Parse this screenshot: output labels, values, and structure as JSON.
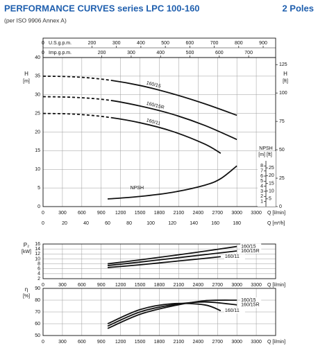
{
  "chart_data": [
    {
      "type": "line",
      "title": "PERFORMANCE CURVES series LPC 100-160",
      "annotation": "2 Poles",
      "subtitle": "(per ISO 9906 Annex A)",
      "y_label": "H",
      "y_unit": "[m]",
      "y2_label": "H",
      "y2_unit": "[ft]",
      "x_label": "Q [l/min]",
      "x2_label": "Q [m³/h]",
      "x3_label": "U.S.g.p.m.",
      "x4_label": "Imp.g.p.m.",
      "y3_label": "NPSH",
      "y3_unit": "[m]",
      "y4_unit": "[ft]",
      "xlim": [
        0,
        3600
      ],
      "xticks": [
        0,
        300,
        600,
        900,
        1200,
        1500,
        1800,
        2100,
        2400,
        2700,
        3000,
        3300
      ],
      "x2lim": [
        0,
        216
      ],
      "x2ticks": [
        0,
        20,
        40,
        60,
        80,
        100,
        120,
        140,
        160,
        180
      ],
      "x3lim": [
        0,
        951.02
      ],
      "x3ticks": [
        0,
        200,
        300,
        400,
        500,
        600,
        700,
        800,
        900
      ],
      "x4lim": [
        0,
        791.89
      ],
      "x4ticks": [
        0,
        200,
        300,
        400,
        500,
        600,
        700
      ],
      "ylim": [
        0,
        40
      ],
      "yticks": [
        0,
        5,
        10,
        15,
        20,
        25,
        30,
        35,
        40
      ],
      "y2lim": [
        0,
        131.23
      ],
      "y2ticks": [
        0,
        25,
        50,
        75,
        100,
        125
      ],
      "y3lim": [
        0,
        9
      ],
      "y3ticks": [
        1,
        2,
        3,
        4,
        5,
        6,
        7,
        8
      ],
      "y4lim": [
        0,
        29.53
      ],
      "y4ticks": [
        5,
        10,
        15,
        20,
        25
      ],
      "grid": true,
      "series": [
        {
          "name": "160/15",
          "color": "#111111",
          "x": [
            0,
            500,
            1000,
            1500,
            2000,
            2500,
            3000
          ],
          "values": [
            35,
            34.8,
            34,
            32.5,
            30.3,
            27.6,
            24.5
          ]
        },
        {
          "name": "160/15R",
          "color": "#111111",
          "x": [
            0,
            500,
            1000,
            1500,
            2000,
            2500,
            3000
          ],
          "values": [
            29.5,
            29.3,
            28.6,
            27,
            24.8,
            21.8,
            18
          ]
        },
        {
          "name": "160/11",
          "color": "#111111",
          "x": [
            0,
            500,
            1000,
            1500,
            2000,
            2500,
            2750
          ],
          "values": [
            25,
            24.8,
            24,
            22.5,
            20.2,
            16.8,
            14.3
          ]
        },
        {
          "name": "NPSH",
          "color": "#111111",
          "axis": "y3",
          "x": [
            1000,
            1500,
            2000,
            2500,
            2750,
            3000
          ],
          "values": [
            1.5,
            2,
            2.8,
            4.2,
            5.5,
            8
          ]
        }
      ]
    },
    {
      "type": "line",
      "y_label": "P₂",
      "y_unit": "[kW]",
      "x_label": "Q [l/min]",
      "xlim": [
        0,
        3600
      ],
      "xticks": [
        0,
        300,
        600,
        900,
        1200,
        1500,
        1800,
        2100,
        2400,
        2700,
        3000,
        3300
      ],
      "ylim": [
        2,
        16
      ],
      "yticks": [
        2,
        4,
        6,
        8,
        10,
        12,
        14,
        16
      ],
      "grid": true,
      "series": [
        {
          "name": "160/15",
          "color": "#111111",
          "x": [
            1000,
            1500,
            2000,
            2500,
            3000
          ],
          "values": [
            8,
            9.6,
            11.3,
            13.1,
            15
          ]
        },
        {
          "name": "160/15R",
          "color": "#111111",
          "x": [
            1000,
            1500,
            2000,
            2500,
            3000
          ],
          "values": [
            7.3,
            8.7,
            10.2,
            11.7,
            13.2
          ]
        },
        {
          "name": "160/11",
          "color": "#111111",
          "x": [
            1000,
            1500,
            2000,
            2500,
            2750
          ],
          "values": [
            6.5,
            7.6,
            8.9,
            10.2,
            10.9
          ]
        }
      ]
    },
    {
      "type": "line",
      "y_label": "η",
      "y_unit": "[%]",
      "x_label": "Q [l/min]",
      "xlim": [
        0,
        3600
      ],
      "xticks": [
        0,
        300,
        600,
        900,
        1200,
        1500,
        1800,
        2100,
        2400,
        2700,
        3000,
        3300
      ],
      "ylim": [
        50,
        90
      ],
      "yticks": [
        50,
        60,
        70,
        80,
        90
      ],
      "grid": true,
      "series": [
        {
          "name": "160/15",
          "color": "#111111",
          "x": [
            1000,
            1500,
            2000,
            2500,
            3000
          ],
          "values": [
            56,
            68,
            75,
            79.5,
            80
          ]
        },
        {
          "name": "160/15R",
          "color": "#111111",
          "x": [
            1000,
            1500,
            2000,
            2500,
            3000
          ],
          "values": [
            58,
            70,
            76,
            78.5,
            76
          ]
        },
        {
          "name": "160/11",
          "color": "#111111",
          "x": [
            1000,
            1500,
            2000,
            2500,
            2750
          ],
          "values": [
            60,
            72,
            77,
            76,
            71
          ]
        }
      ]
    }
  ]
}
